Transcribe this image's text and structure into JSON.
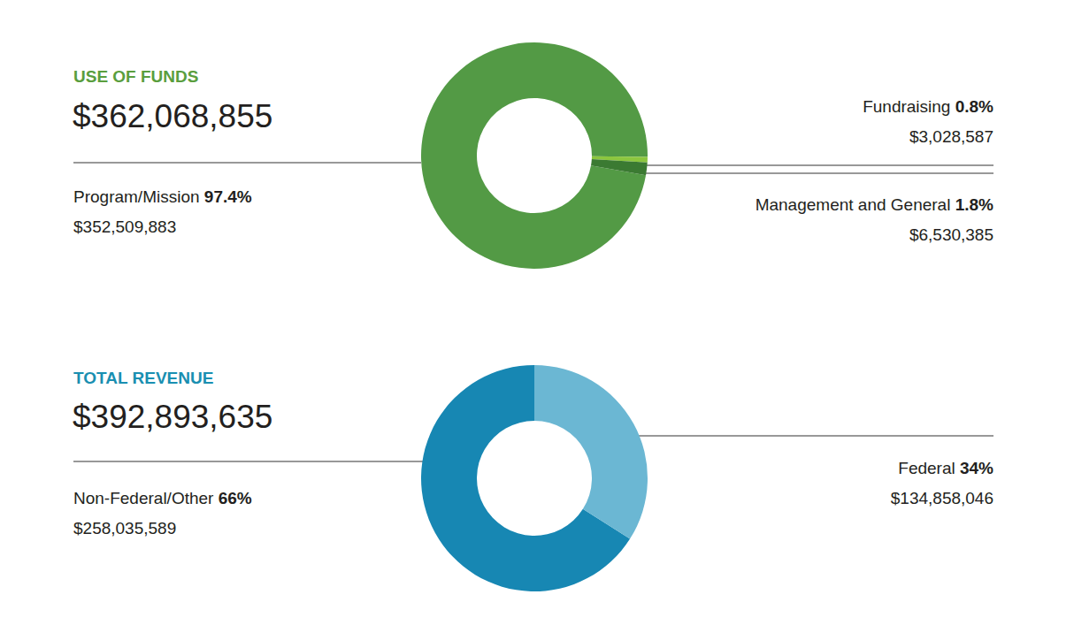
{
  "chart_data": [
    {
      "type": "pie",
      "title": "USE OF FUNDS",
      "subtitle": "$362,068,855",
      "categories": [
        "Program/Mission",
        "Fundraising",
        "Management and General"
      ],
      "values": [
        97.4,
        0.8,
        1.8
      ],
      "value_labels": [
        "97.4%",
        "0.8%",
        "1.8%"
      ],
      "amount_labels": [
        "$352,509,883",
        "$3,028,587",
        "$6,530,385"
      ],
      "colors": [
        "#539a45",
        "#8cc63f",
        "#3b7a32"
      ]
    },
    {
      "type": "pie",
      "title": "TOTAL REVENUE",
      "subtitle": "$392,893,635",
      "categories": [
        "Non-Federal/Other",
        "Federal"
      ],
      "values": [
        66,
        34
      ],
      "value_labels": [
        "66%",
        "34%"
      ],
      "amount_labels": [
        "$258,035,589",
        "$134,858,046"
      ],
      "colors": [
        "#1787b3",
        "#6bb7d3"
      ]
    }
  ]
}
